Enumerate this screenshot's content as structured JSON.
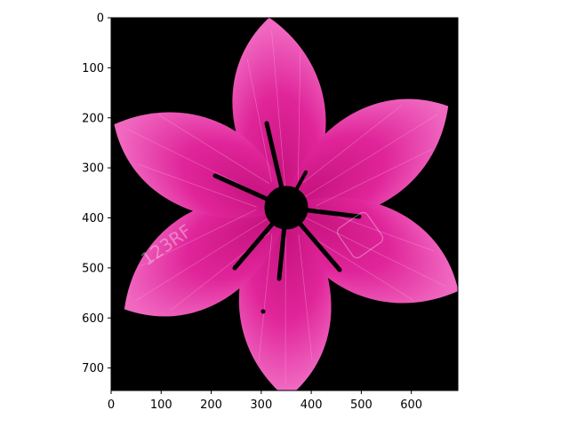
{
  "image": {
    "subject": "pink six-petal flower",
    "background_color": "#000000",
    "petal_color": "#e0259a",
    "petal_highlight": "#f070c0",
    "center_color": "#000000",
    "watermarks": [
      "123RF"
    ]
  },
  "axes": {
    "xlim": [
      0,
      693
    ],
    "ylim": [
      745,
      0
    ],
    "xticks": [
      0,
      100,
      200,
      300,
      400,
      500,
      600
    ],
    "yticks": [
      0,
      100,
      200,
      300,
      400,
      500,
      600,
      700
    ],
    "xtick_labels": [
      "0",
      "100",
      "200",
      "300",
      "400",
      "500",
      "600"
    ],
    "ytick_labels": [
      "0",
      "100",
      "200",
      "300",
      "400",
      "500",
      "600",
      "700"
    ]
  }
}
